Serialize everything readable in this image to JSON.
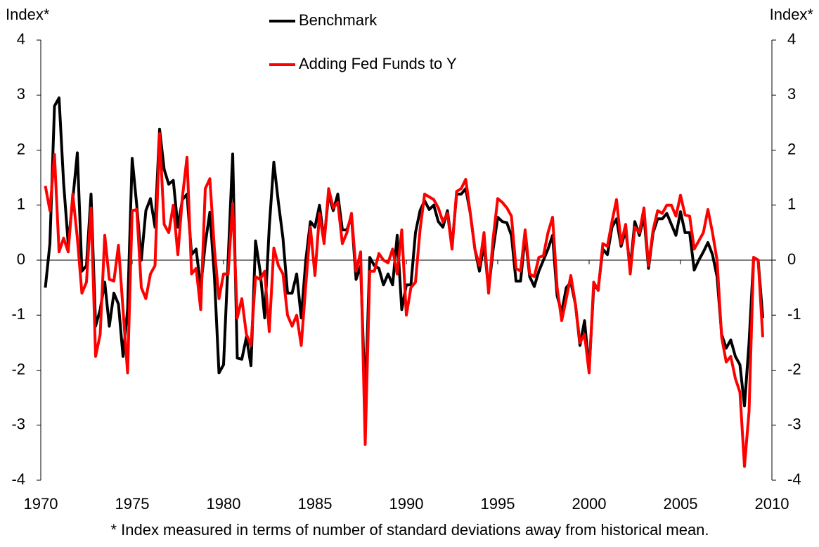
{
  "chart_data": {
    "type": "line",
    "y_label": "Index*",
    "y2_label": "Index*",
    "annotation": "* Index measured in terms of number of standard deviations away from historical mean.",
    "x": [
      1970.25,
      1970.5,
      1970.75,
      1971,
      1971.25,
      1971.5,
      1971.75,
      1972,
      1972.25,
      1972.5,
      1972.75,
      1973,
      1973.25,
      1973.5,
      1973.75,
      1974,
      1974.25,
      1974.5,
      1974.75,
      1975,
      1975.25,
      1975.5,
      1975.75,
      1976,
      1976.25,
      1976.5,
      1976.75,
      1977,
      1977.25,
      1977.5,
      1977.75,
      1978,
      1978.25,
      1978.5,
      1978.75,
      1979,
      1979.25,
      1979.5,
      1979.75,
      1980,
      1980.25,
      1980.5,
      1980.75,
      1981,
      1981.25,
      1981.5,
      1981.75,
      1982,
      1982.25,
      1982.5,
      1982.75,
      1983,
      1983.25,
      1983.5,
      1983.75,
      1984,
      1984.25,
      1984.5,
      1984.75,
      1985,
      1985.25,
      1985.5,
      1985.75,
      1986,
      1986.25,
      1986.5,
      1986.75,
      1987,
      1987.25,
      1987.5,
      1987.75,
      1988,
      1988.25,
      1988.5,
      1988.75,
      1989,
      1989.25,
      1989.5,
      1989.75,
      1990,
      1990.25,
      1990.5,
      1990.75,
      1991,
      1991.25,
      1991.5,
      1991.75,
      1992,
      1992.25,
      1992.5,
      1992.75,
      1993,
      1993.25,
      1993.5,
      1993.75,
      1994,
      1994.25,
      1994.5,
      1994.75,
      1995,
      1995.25,
      1995.5,
      1995.75,
      1996,
      1996.25,
      1996.5,
      1996.75,
      1997,
      1997.25,
      1997.5,
      1997.75,
      1998,
      1998.25,
      1998.5,
      1998.75,
      1999,
      1999.25,
      1999.5,
      1999.75,
      2000,
      2000.25,
      2000.5,
      2000.75,
      2001,
      2001.25,
      2001.5,
      2001.75,
      2002,
      2002.25,
      2002.5,
      2002.75,
      2003,
      2003.25,
      2003.5,
      2003.75,
      2004,
      2004.25,
      2004.5,
      2004.75,
      2005,
      2005.25,
      2005.5,
      2005.75,
      2006,
      2006.25,
      2006.5,
      2006.75,
      2007,
      2007.25,
      2007.5,
      2007.75,
      2008,
      2008.25,
      2008.5,
      2008.75,
      2009,
      2009.25,
      2009.5
    ],
    "series": [
      {
        "name": "Benchmark",
        "color": "#000000",
        "values": [
          -0.5,
          0.3,
          2.8,
          2.95,
          1.4,
          0.3,
          1.1,
          1.95,
          -0.2,
          -0.1,
          1.2,
          -1.2,
          -0.9,
          -0.4,
          -1.2,
          -0.6,
          -0.8,
          -1.75,
          -0.9,
          1.85,
          1.0,
          0.0,
          0.9,
          1.12,
          0.6,
          2.38,
          1.65,
          1.38,
          1.45,
          0.6,
          1.1,
          1.2,
          0.1,
          0.2,
          -0.5,
          0.3,
          0.87,
          -0.3,
          -2.05,
          -1.9,
          0.0,
          1.93,
          -1.78,
          -1.8,
          -1.4,
          -1.92,
          0.35,
          -0.2,
          -1.05,
          0.6,
          1.78,
          1.05,
          0.4,
          -0.6,
          -0.6,
          -0.25,
          -1.05,
          0.0,
          0.7,
          0.6,
          1.0,
          0.35,
          1.2,
          0.9,
          1.2,
          0.55,
          0.55,
          0.8,
          -0.35,
          -0.1,
          -2.6,
          0.05,
          -0.1,
          -0.15,
          -0.45,
          -0.25,
          -0.45,
          0.45,
          -0.9,
          -0.45,
          -0.45,
          0.5,
          0.9,
          1.08,
          0.92,
          1.0,
          0.7,
          0.6,
          0.9,
          0.25,
          1.2,
          1.2,
          1.3,
          0.85,
          0.2,
          -0.2,
          0.3,
          -0.55,
          0.2,
          0.78,
          0.7,
          0.68,
          0.45,
          -0.38,
          -0.38,
          0.45,
          -0.3,
          -0.48,
          -0.2,
          0.0,
          0.2,
          0.45,
          -0.65,
          -0.95,
          -0.5,
          -0.4,
          -0.8,
          -1.55,
          -1.1,
          -2.0,
          -0.5,
          -0.5,
          0.2,
          0.1,
          0.6,
          0.75,
          0.25,
          0.55,
          -0.15,
          0.7,
          0.45,
          0.8,
          -0.15,
          0.5,
          0.75,
          0.75,
          0.85,
          0.65,
          0.45,
          0.88,
          0.5,
          0.5,
          -0.18,
          0.0,
          0.15,
          0.32,
          0.1,
          -0.3,
          -1.35,
          -1.6,
          -1.45,
          -1.75,
          -1.9,
          -2.65,
          -1.5,
          0.05,
          0.0,
          -1.05
        ]
      },
      {
        "name": "Adding Fed Funds to Y",
        "color": "#ff0000",
        "values": [
          1.35,
          0.9,
          1.92,
          0.15,
          0.4,
          0.15,
          1.2,
          0.4,
          -0.6,
          -0.4,
          0.95,
          -1.75,
          -1.35,
          0.45,
          -0.35,
          -0.38,
          0.27,
          -0.9,
          -2.05,
          0.9,
          0.92,
          -0.5,
          -0.7,
          -0.25,
          -0.1,
          2.3,
          0.65,
          0.5,
          1.0,
          0.1,
          1.15,
          1.87,
          -0.25,
          -0.15,
          -0.9,
          1.3,
          1.48,
          0.2,
          -0.7,
          -0.25,
          -0.25,
          1.03,
          -1.05,
          -0.7,
          -1.35,
          -1.55,
          -0.3,
          -0.35,
          -0.2,
          -1.3,
          0.22,
          -0.1,
          -0.25,
          -1.0,
          -1.2,
          -1.0,
          -1.55,
          -0.45,
          0.6,
          -0.28,
          0.85,
          0.3,
          1.3,
          0.95,
          1.05,
          0.3,
          0.5,
          0.85,
          -0.2,
          0.15,
          -3.35,
          -0.2,
          -0.2,
          0.12,
          0.0,
          -0.05,
          0.2,
          -0.25,
          0.55,
          -1.0,
          -0.5,
          -0.4,
          0.55,
          1.2,
          1.15,
          1.1,
          0.95,
          0.7,
          0.85,
          0.2,
          1.25,
          1.3,
          1.47,
          0.85,
          0.2,
          -0.1,
          0.5,
          -0.6,
          0.4,
          1.12,
          1.05,
          0.95,
          0.8,
          -0.15,
          -0.2,
          0.55,
          -0.25,
          -0.3,
          0.05,
          0.08,
          0.5,
          0.78,
          -0.5,
          -1.1,
          -0.7,
          -0.28,
          -0.8,
          -1.5,
          -1.35,
          -2.05,
          -0.4,
          -0.55,
          0.3,
          0.25,
          0.7,
          1.1,
          0.3,
          0.65,
          -0.25,
          0.6,
          0.5,
          0.95,
          -0.1,
          0.55,
          0.9,
          0.85,
          1.0,
          1.0,
          0.8,
          1.18,
          0.82,
          0.8,
          0.2,
          0.35,
          0.5,
          0.92,
          0.5,
          0.0,
          -1.4,
          -1.85,
          -1.75,
          -2.15,
          -2.4,
          -3.75,
          -2.75,
          0.05,
          0.0,
          -1.4
        ]
      }
    ],
    "xlim": [
      1970,
      2010
    ],
    "xticks": [
      1970,
      1975,
      1980,
      1985,
      1990,
      1995,
      2000,
      2005,
      2010
    ],
    "ylim": [
      -4,
      4
    ],
    "yticks": [
      -4,
      -3,
      -2,
      -1,
      0,
      1,
      2,
      3,
      4
    ],
    "y2lim": [
      -4,
      4
    ],
    "y2ticks": [
      -4,
      -3,
      -2,
      -1,
      0,
      1,
      2,
      3,
      4
    ],
    "grid": false
  }
}
